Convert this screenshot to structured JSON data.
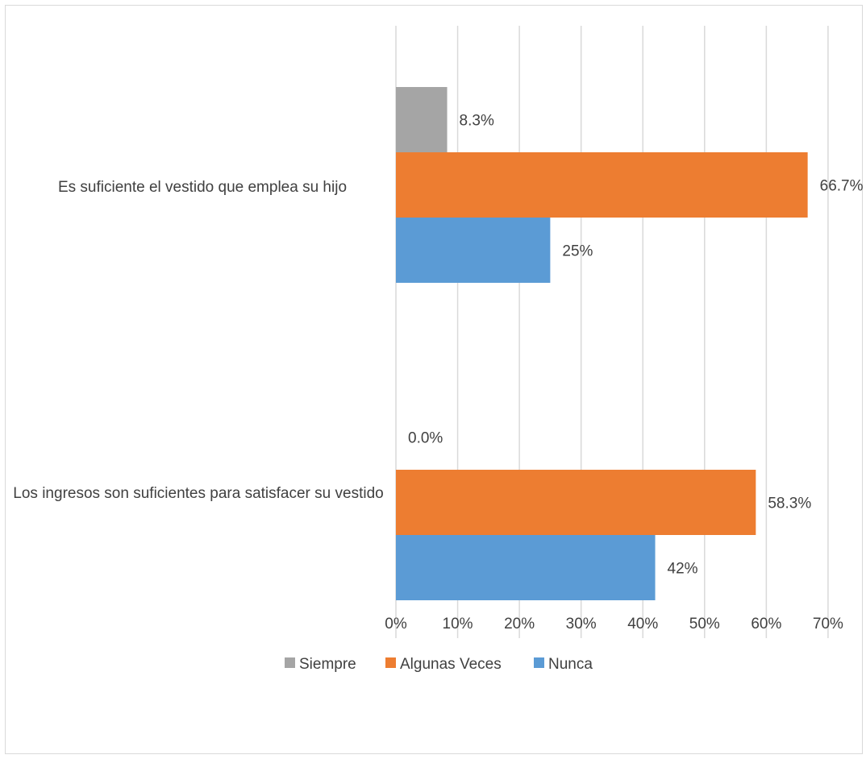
{
  "chart_data": {
    "type": "bar",
    "orientation": "horizontal",
    "title": "",
    "xlabel": "",
    "ylabel": "",
    "xlim": [
      0,
      70
    ],
    "x_ticks": [
      "0%",
      "10%",
      "20%",
      "30%",
      "40%",
      "50%",
      "60%",
      "70%"
    ],
    "grid": "vertical",
    "legend_position": "bottom",
    "categories": [
      "Es suficiente el vestido que emplea su hijo",
      "Los ingresos son suficientes para satisfacer su vestido"
    ],
    "series": [
      {
        "name": "Siempre",
        "color": "#a5a5a5",
        "values": [
          8.3,
          0.0
        ],
        "labels": [
          "8.3%",
          "0.0%"
        ]
      },
      {
        "name": "Algunas Veces",
        "color": "#ed7d31",
        "values": [
          66.7,
          58.3
        ],
        "labels": [
          "66.7%",
          "58.3%"
        ]
      },
      {
        "name": "Nunca",
        "color": "#5b9bd5",
        "values": [
          25,
          42
        ],
        "labels": [
          "25%",
          "42%"
        ]
      }
    ]
  }
}
